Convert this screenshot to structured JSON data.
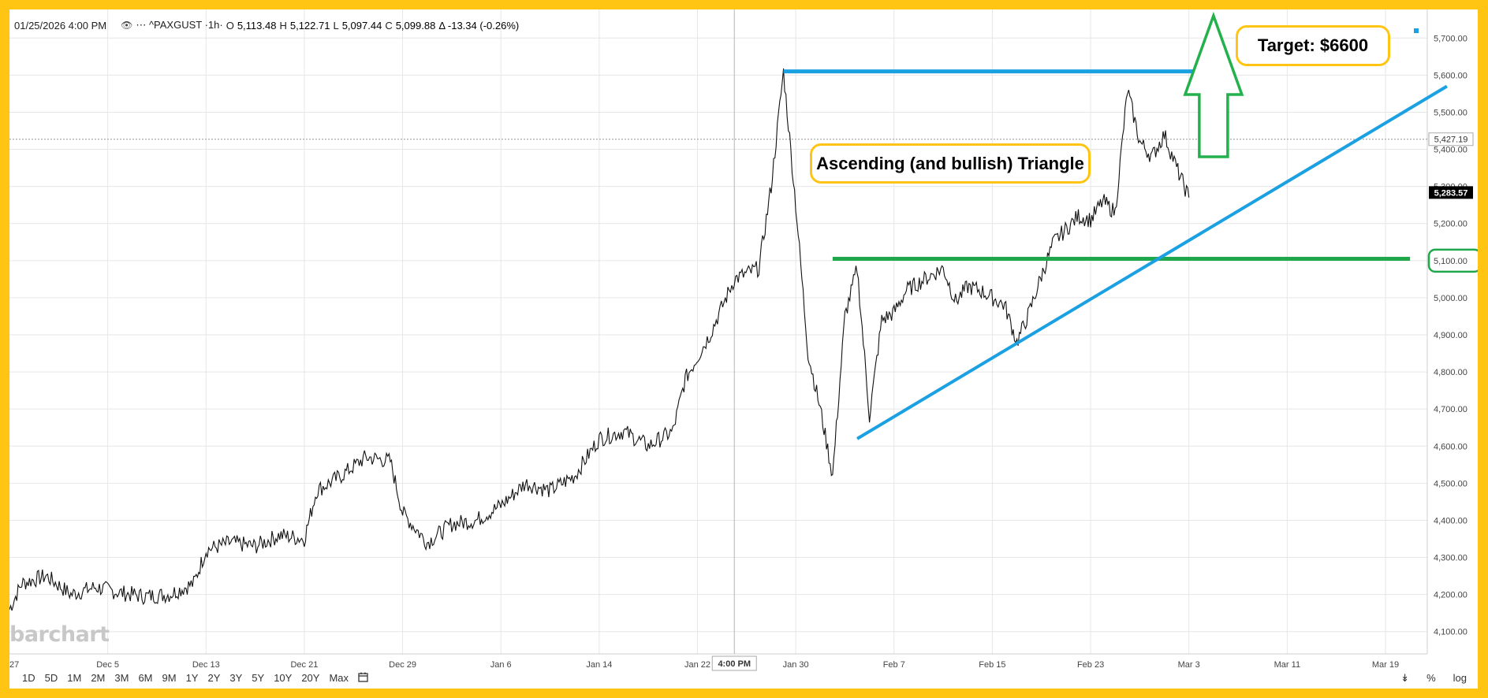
{
  "header": {
    "datetime": "01/25/2026 4:00 PM",
    "eye_icon": "eye-icon",
    "symbol": "⋯ ^PAXGUST ·1h·",
    "open_label": "O",
    "open": "5,113.48",
    "high_label": "H",
    "high": "5,122.71",
    "low_label": "L",
    "low": "5,097.44",
    "close_label": "C",
    "close": "5,099.88",
    "change": "Δ -13.34 (-0.26%)"
  },
  "annotations": {
    "triangle_label": "Ascending (and bullish) Triangle",
    "target_label": "Target: $6600"
  },
  "crosshair": {
    "time_label": "4:00 PM",
    "price_label": "5,427.19"
  },
  "last_price": "5,283.57",
  "logo": "barchart",
  "footer": {
    "ranges": [
      "1D",
      "5D",
      "1M",
      "2M",
      "3M",
      "6M",
      "9M",
      "1Y",
      "2Y",
      "3Y",
      "5Y",
      "10Y",
      "20Y",
      "Max"
    ],
    "calendar_icon": "calendar-icon",
    "collapse_icon": "double-chevron-down-icon",
    "percent_label": "%",
    "log_label": "log"
  },
  "colors": {
    "frame": "#ffc512",
    "price_line": "#111111",
    "resistance": "#1ba1e2",
    "support": "#1fa84b",
    "arrow": "#22b14c",
    "grid": "#e6e6e6"
  },
  "chart_data": {
    "type": "line",
    "title": "",
    "symbol": "^PAXGUST",
    "interval": "1h",
    "x_tick_labels": [
      "27",
      "Dec 5",
      "Dec 13",
      "Dec 21",
      "Dec 29",
      "Jan 6",
      "Jan 14",
      "Jan 22",
      "Jan 30",
      "Feb 7",
      "Feb 15",
      "Feb 23",
      "Mar 3",
      "Mar 11",
      "Mar 19"
    ],
    "y_tick_labels": [
      "4,100.00",
      "4,200.00",
      "4,300.00",
      "4,400.00",
      "4,500.00",
      "4,600.00",
      "4,700.00",
      "4,800.00",
      "4,900.00",
      "5,000.00",
      "5,100.00",
      "5,200.00",
      "5,300.00",
      "5,400.00",
      "5,500.00",
      "5,600.00",
      "5,700.00"
    ],
    "ylim": [
      4040,
      5760
    ],
    "grid": true,
    "series": [
      {
        "x": [
          "2025-11-27",
          "2025-11-28",
          "2025-11-30",
          "2025-12-02",
          "2025-12-04",
          "2025-12-06",
          "2025-12-08",
          "2025-12-10",
          "2025-12-12",
          "2025-12-13",
          "2025-12-15",
          "2025-12-17",
          "2025-12-19",
          "2025-12-21",
          "2025-12-22",
          "2025-12-24",
          "2025-12-26",
          "2025-12-28",
          "2025-12-29",
          "2025-12-31",
          "2026-01-02",
          "2026-01-04",
          "2026-01-06",
          "2026-01-08",
          "2026-01-10",
          "2026-01-12",
          "2026-01-14",
          "2026-01-16",
          "2026-01-18",
          "2026-01-20",
          "2026-01-21",
          "2026-01-23",
          "2026-01-25",
          "2026-01-27",
          "2026-01-28",
          "2026-01-29",
          "2026-01-30",
          "2026-01-31",
          "2026-02-01",
          "2026-02-02",
          "2026-02-03",
          "2026-02-04",
          "2026-02-05",
          "2026-02-06",
          "2026-02-07",
          "2026-02-08",
          "2026-02-10",
          "2026-02-11",
          "2026-02-12",
          "2026-02-13",
          "2026-02-14",
          "2026-02-16",
          "2026-02-17",
          "2026-02-18",
          "2026-02-19",
          "2026-02-20",
          "2026-02-22",
          "2026-02-23",
          "2026-02-24",
          "2026-02-25",
          "2026-02-26",
          "2026-02-27",
          "2026-02-28",
          "2026-03-01",
          "2026-03-02",
          "2026-03-03"
        ],
        "y": [
          4160,
          4230,
          4250,
          4200,
          4220,
          4205,
          4195,
          4200,
          4230,
          4320,
          4340,
          4330,
          4360,
          4350,
          4480,
          4520,
          4570,
          4560,
          4420,
          4340,
          4390,
          4400,
          4440,
          4500,
          4480,
          4520,
          4620,
          4640,
          4600,
          4640,
          4780,
          4900,
          5050,
          5080,
          5300,
          5610,
          5250,
          4850,
          4700,
          4520,
          4950,
          5080,
          4680,
          4940,
          4960,
          5020,
          5060,
          5080,
          4990,
          5030,
          5020,
          4980,
          4880,
          4960,
          5060,
          5150,
          5220,
          5210,
          5260,
          5230,
          5560,
          5420,
          5380,
          5440,
          5350,
          5270
        ]
      }
    ],
    "annotations": [
      {
        "kind": "horizontal-line",
        "name": "resistance",
        "y": 5610,
        "x_start": "2026-01-29",
        "x_end": "2026-03-05"
      },
      {
        "kind": "horizontal-line",
        "name": "support",
        "y": 5105,
        "x_start": "2026-02-02",
        "x_end": "2026-03-21"
      },
      {
        "kind": "trend-line",
        "name": "rising-support",
        "points": [
          [
            "2026-02-04",
            4620
          ],
          [
            "2026-03-24",
            5570
          ]
        ]
      },
      {
        "kind": "arrow-up",
        "x": "2026-03-05",
        "y_from": 5380,
        "y_to": 5760
      }
    ]
  }
}
